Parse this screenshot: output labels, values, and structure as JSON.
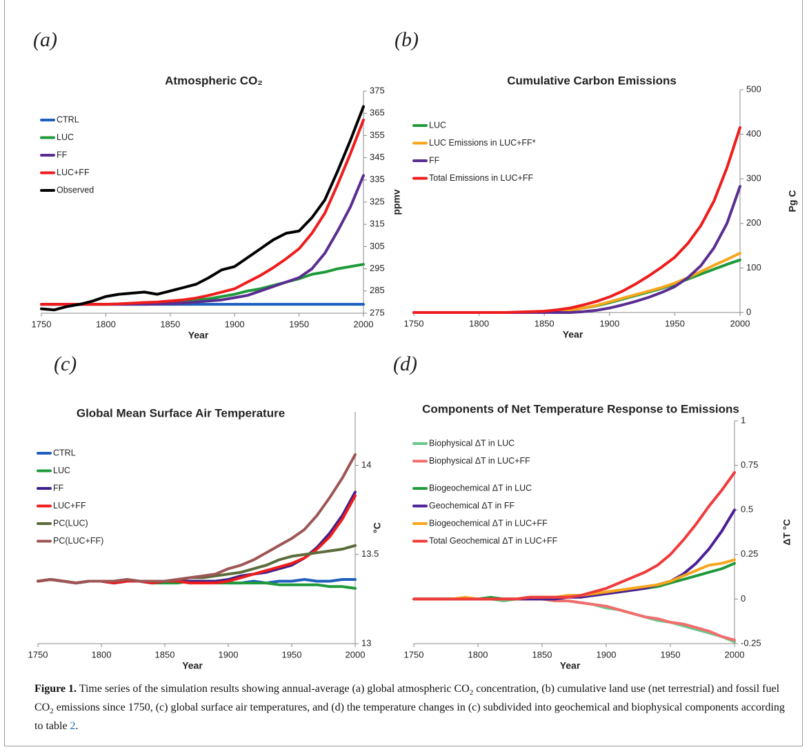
{
  "chart_data": [
    {
      "type": "line",
      "panel": "(a)",
      "title": "Atmospheric CO₂",
      "xlabel": "Year",
      "ylabel": "ppmv",
      "xlim": [
        1750,
        2000
      ],
      "xticks": [
        1750,
        1800,
        1850,
        1900,
        1950,
        2000
      ],
      "ylim": [
        275,
        375
      ],
      "yticks": [
        275,
        285,
        295,
        305,
        315,
        325,
        335,
        345,
        355,
        365,
        375
      ],
      "grid": false,
      "legend": "upper left",
      "x": [
        1750,
        1760,
        1770,
        1780,
        1790,
        1800,
        1810,
        1820,
        1830,
        1840,
        1850,
        1860,
        1870,
        1880,
        1890,
        1900,
        1910,
        1920,
        1930,
        1940,
        1950,
        1960,
        1970,
        1980,
        1990,
        2000
      ],
      "series": [
        {
          "name": "CTRL",
          "color": "#1f5fbf",
          "values": [
            279,
            279,
            279,
            279,
            279,
            279,
            279,
            279,
            279,
            279,
            279,
            279,
            279,
            279,
            279,
            279,
            279,
            279,
            279,
            279,
            279,
            279,
            279,
            279,
            279,
            279
          ]
        },
        {
          "name": "LUC",
          "color": "#1e9a3a",
          "values": [
            279,
            279,
            279,
            279,
            279,
            279,
            279.1,
            279.2,
            279.3,
            279.5,
            280,
            280.5,
            281,
            281.5,
            282.5,
            283.5,
            285,
            286,
            287.5,
            289,
            290.5,
            292.5,
            293.5,
            295,
            296,
            297
          ]
        },
        {
          "name": "FF",
          "color": "#5a2d91",
          "values": [
            279,
            279,
            279,
            279,
            279,
            279,
            279,
            279,
            279,
            279.1,
            279.3,
            279.6,
            280,
            280.5,
            281,
            282,
            283,
            285,
            287,
            289,
            291,
            295,
            302,
            312,
            323,
            337
          ]
        },
        {
          "name": "LUC+FF",
          "color": "#ee1c1c",
          "values": [
            279,
            279,
            279,
            279,
            279,
            279,
            279.2,
            279.5,
            279.8,
            280,
            280.5,
            281,
            281.8,
            283,
            284.5,
            286,
            289,
            292,
            295.5,
            299.5,
            304,
            311,
            320,
            333,
            347,
            362
          ]
        },
        {
          "name": "Observed",
          "color": "#000000",
          "values": [
            277,
            276.5,
            278,
            279,
            280.5,
            282.5,
            283.5,
            284,
            284.5,
            283.5,
            285,
            286.5,
            288,
            291,
            294.5,
            296,
            300,
            304,
            308,
            311,
            312,
            318,
            326,
            339,
            353,
            368
          ]
        }
      ]
    },
    {
      "type": "line",
      "panel": "(b)",
      "title": "Cumulative Carbon Emissions",
      "xlabel": "Year",
      "ylabel": "Pg C",
      "xlim": [
        1750,
        2000
      ],
      "xticks": [
        1750,
        1800,
        1850,
        1900,
        1950,
        2000
      ],
      "ylim": [
        0,
        500
      ],
      "yticks": [
        0,
        100,
        200,
        300,
        400,
        500
      ],
      "grid": false,
      "legend": "upper left",
      "x": [
        1750,
        1760,
        1770,
        1780,
        1790,
        1800,
        1810,
        1820,
        1830,
        1840,
        1850,
        1860,
        1870,
        1880,
        1890,
        1900,
        1910,
        1920,
        1930,
        1940,
        1950,
        1960,
        1970,
        1980,
        1990,
        2000
      ],
      "series": [
        {
          "name": "LUC",
          "color": "#1e9a3a",
          "values": [
            0,
            0,
            0,
            0,
            0,
            0,
            0,
            0,
            0,
            0,
            0,
            2,
            5,
            10,
            15,
            22,
            30,
            38,
            46,
            54,
            64,
            75,
            86,
            97,
            108,
            118
          ]
        },
        {
          "name": "LUC Emissions in LUC+FF*",
          "color": "#f7a51c",
          "values": [
            0,
            0,
            0,
            0,
            0,
            0,
            0,
            0,
            0,
            0,
            0,
            2,
            5,
            10,
            16,
            24,
            32,
            40,
            48,
            56,
            66,
            78,
            92,
            106,
            119,
            133
          ]
        },
        {
          "name": "FF",
          "color": "#5a2d91",
          "values": [
            0,
            0,
            0,
            0,
            0,
            0,
            0,
            0,
            0,
            0,
            0,
            0,
            0,
            2,
            5,
            10,
            17,
            25,
            34,
            45,
            58,
            78,
            105,
            145,
            200,
            283
          ]
        },
        {
          "name": "Total Emissions in LUC+FF",
          "color": "#ee1c1c",
          "values": [
            0,
            0,
            0,
            0,
            0,
            0,
            0,
            0,
            1,
            2,
            3,
            6,
            10,
            17,
            25,
            35,
            48,
            64,
            82,
            102,
            124,
            155,
            195,
            250,
            325,
            415
          ]
        }
      ]
    },
    {
      "type": "line",
      "panel": "(c)",
      "title": "Global Mean Surface Air Temperature",
      "xlabel": "Year",
      "ylabel": "°C",
      "xlim": [
        1750,
        2000
      ],
      "xticks": [
        1750,
        1800,
        1850,
        1900,
        1950,
        2000
      ],
      "ylim": [
        13,
        14.3
      ],
      "yticks": [
        13,
        13.5,
        14
      ],
      "grid": false,
      "legend": "upper left",
      "x": [
        1750,
        1760,
        1770,
        1780,
        1790,
        1800,
        1810,
        1820,
        1830,
        1840,
        1850,
        1860,
        1870,
        1880,
        1890,
        1900,
        1910,
        1920,
        1930,
        1940,
        1950,
        1960,
        1970,
        1980,
        1990,
        2000
      ],
      "series": [
        {
          "name": "CTRL",
          "color": "#1f5fbf",
          "values": [
            13.35,
            13.36,
            13.35,
            13.34,
            13.35,
            13.35,
            13.34,
            13.35,
            13.35,
            13.34,
            13.35,
            13.35,
            13.34,
            13.35,
            13.35,
            13.34,
            13.34,
            13.35,
            13.34,
            13.35,
            13.35,
            13.36,
            13.35,
            13.35,
            13.36,
            13.36
          ]
        },
        {
          "name": "LUC",
          "color": "#1e9a3a",
          "values": [
            13.35,
            13.36,
            13.35,
            13.34,
            13.35,
            13.35,
            13.34,
            13.36,
            13.35,
            13.34,
            13.34,
            13.34,
            13.35,
            13.35,
            13.34,
            13.34,
            13.34,
            13.34,
            13.34,
            13.33,
            13.33,
            13.33,
            13.33,
            13.32,
            13.32,
            13.31
          ]
        },
        {
          "name": "FF",
          "color": "#3f1f8a",
          "values": [
            13.35,
            13.36,
            13.35,
            13.34,
            13.35,
            13.35,
            13.34,
            13.35,
            13.35,
            13.34,
            13.35,
            13.35,
            13.35,
            13.35,
            13.35,
            13.36,
            13.38,
            13.39,
            13.4,
            13.42,
            13.44,
            13.48,
            13.54,
            13.62,
            13.72,
            13.85
          ]
        },
        {
          "name": "LUC+FF",
          "color": "#ee1c1c",
          "values": [
            13.35,
            13.36,
            13.35,
            13.34,
            13.35,
            13.35,
            13.34,
            13.35,
            13.35,
            13.34,
            13.35,
            13.35,
            13.34,
            13.34,
            13.34,
            13.35,
            13.37,
            13.39,
            13.41,
            13.43,
            13.45,
            13.48,
            13.53,
            13.6,
            13.7,
            13.83
          ]
        },
        {
          "name": "PC(LUC)",
          "color": "#5c6b3a",
          "values": [
            13.35,
            13.36,
            13.35,
            13.34,
            13.35,
            13.35,
            13.35,
            13.36,
            13.35,
            13.35,
            13.35,
            13.36,
            13.37,
            13.37,
            13.38,
            13.39,
            13.4,
            13.42,
            13.44,
            13.47,
            13.49,
            13.5,
            13.51,
            13.52,
            13.53,
            13.55
          ]
        },
        {
          "name": "PC(LUC+FF)",
          "color": "#9e5555",
          "values": [
            13.35,
            13.36,
            13.35,
            13.34,
            13.35,
            13.35,
            13.35,
            13.36,
            13.35,
            13.35,
            13.35,
            13.36,
            13.37,
            13.38,
            13.39,
            13.42,
            13.44,
            13.47,
            13.51,
            13.55,
            13.59,
            13.64,
            13.72,
            13.82,
            13.93,
            14.06
          ]
        }
      ]
    },
    {
      "type": "line",
      "panel": "(d)",
      "title": "Components of Net Temperature Response to Emissions",
      "xlabel": "Year",
      "ylabel": "ΔT °C",
      "xlim": [
        1750,
        2000
      ],
      "xticks": [
        1750,
        1800,
        1850,
        1900,
        1950,
        2000
      ],
      "ylim": [
        -0.25,
        1
      ],
      "yticks": [
        -0.25,
        0,
        0.25,
        0.5,
        0.75,
        1
      ],
      "grid": false,
      "legend": "upper left",
      "x": [
        1750,
        1760,
        1770,
        1780,
        1790,
        1800,
        1810,
        1820,
        1830,
        1840,
        1850,
        1860,
        1870,
        1880,
        1890,
        1900,
        1910,
        1920,
        1930,
        1940,
        1950,
        1960,
        1970,
        1980,
        1990,
        2000
      ],
      "series": [
        {
          "name": "Biophysical ΔT in LUC",
          "color": "#66c98a",
          "values": [
            0,
            0,
            0,
            0,
            0,
            0,
            0,
            -0.01,
            0,
            0,
            0,
            -0.01,
            -0.01,
            -0.02,
            -0.03,
            -0.05,
            -0.06,
            -0.08,
            -0.1,
            -0.12,
            -0.13,
            -0.15,
            -0.17,
            -0.19,
            -0.21,
            -0.24
          ]
        },
        {
          "name": "Biophysical ΔT in LUC+FF",
          "color": "#f26d6d",
          "values": [
            0,
            0,
            0,
            0,
            0,
            0,
            0,
            0,
            0,
            0,
            0,
            -0.01,
            -0.01,
            -0.02,
            -0.03,
            -0.04,
            -0.06,
            -0.08,
            -0.1,
            -0.11,
            -0.13,
            -0.14,
            -0.16,
            -0.18,
            -0.21,
            -0.23
          ]
        },
        {
          "name": "Biogeochemical ΔT in LUC",
          "color": "#1e9a3a",
          "values": [
            0,
            0,
            0,
            0,
            0,
            0,
            0.01,
            0,
            0,
            0.01,
            0.01,
            0.01,
            0.02,
            0.02,
            0.02,
            0.03,
            0.04,
            0.05,
            0.06,
            0.07,
            0.09,
            0.11,
            0.13,
            0.15,
            0.17,
            0.2
          ]
        },
        {
          "name": "Geochemical ΔT in FF",
          "color": "#4a1f96",
          "values": [
            0,
            0,
            0,
            0,
            0,
            0,
            0,
            0,
            0,
            0,
            0,
            0,
            0.01,
            0.01,
            0.02,
            0.03,
            0.04,
            0.05,
            0.06,
            0.08,
            0.1,
            0.14,
            0.2,
            0.28,
            0.38,
            0.5
          ]
        },
        {
          "name": "Biogeochemical ΔT in LUC+FF",
          "color": "#f7a51c",
          "values": [
            0,
            0,
            0,
            0,
            0.01,
            0,
            0,
            0,
            0,
            0.01,
            0.01,
            0.01,
            0.02,
            0.02,
            0.03,
            0.04,
            0.05,
            0.06,
            0.07,
            0.08,
            0.1,
            0.13,
            0.16,
            0.19,
            0.2,
            0.22
          ]
        },
        {
          "name": "Total Geochemical ΔT in LUC+FF",
          "color": "#f03b3b",
          "values": [
            0,
            0,
            0,
            0,
            0,
            0,
            0,
            0,
            0,
            0.01,
            0.01,
            0.01,
            0.01,
            0.02,
            0.04,
            0.06,
            0.09,
            0.12,
            0.15,
            0.19,
            0.25,
            0.33,
            0.42,
            0.52,
            0.61,
            0.71
          ]
        }
      ]
    }
  ],
  "caption": {
    "label": "Figure 1.",
    "text": [
      "Time series of the simulation results showing annual-average (a) global atmospheric CO",
      "2",
      " concentration, (b) cumulative land use (net terrestrial) and fossil fuel CO",
      "2",
      " emissions since 1750, (c) global surface air temperatures, and (d) the temperature changes in (c) subdivided into geochemical and biophysical components according to table ",
      "2",
      "."
    ]
  }
}
